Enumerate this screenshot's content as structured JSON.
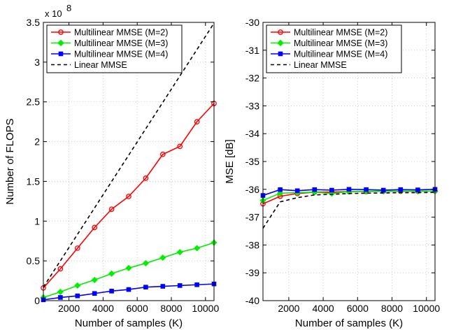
{
  "chart_data": [
    {
      "type": "line",
      "xlabel": "Number of samples (K)",
      "ylabel": "Number of FLOPS",
      "y_exponent_label": "x 10",
      "y_exponent_power": "8",
      "xlim": [
        500,
        10500
      ],
      "ylim": [
        0,
        3.5
      ],
      "xticks": [
        2000,
        4000,
        6000,
        8000,
        10000
      ],
      "yticks": [
        0,
        0.5,
        1,
        1.5,
        2,
        2.5,
        3,
        3.5
      ],
      "grid": true,
      "legend_position": "top-left",
      "series": [
        {
          "name": "Multilinear MMSE (M=2)",
          "color": "#ff0000",
          "marker": "circle",
          "dash": false,
          "x": [
            500,
            1500,
            2500,
            3500,
            4500,
            5500,
            6500,
            7500,
            8500,
            9500,
            10500
          ],
          "y": [
            0.16,
            0.4,
            0.66,
            0.92,
            1.15,
            1.31,
            1.54,
            1.84,
            1.94,
            2.25,
            2.48
          ]
        },
        {
          "name": "Multilinear MMSE (M=3)",
          "color": "#00ee00",
          "marker": "diamond",
          "dash": false,
          "x": [
            500,
            1500,
            2500,
            3500,
            4500,
            5500,
            6500,
            7500,
            8500,
            9500,
            10500
          ],
          "y": [
            0.04,
            0.11,
            0.19,
            0.26,
            0.34,
            0.41,
            0.47,
            0.54,
            0.61,
            0.66,
            0.73
          ]
        },
        {
          "name": "Multilinear MMSE (M=4)",
          "color": "#0000ff",
          "marker": "square",
          "dash": false,
          "x": [
            500,
            1500,
            2500,
            3500,
            4500,
            5500,
            6500,
            7500,
            8500,
            9500,
            10500
          ],
          "y": [
            0.01,
            0.04,
            0.06,
            0.09,
            0.12,
            0.14,
            0.17,
            0.18,
            0.19,
            0.2,
            0.21
          ]
        },
        {
          "name": "Linear MMSE",
          "color": "#000000",
          "marker": "none",
          "dash": true,
          "x": [
            500,
            10500
          ],
          "y": [
            0.17,
            3.49
          ]
        }
      ]
    },
    {
      "type": "line",
      "xlabel": "Number of samples (K)",
      "ylabel": "MSE [dB]",
      "xlim": [
        500,
        10500
      ],
      "ylim": [
        -40,
        -30
      ],
      "xticks": [
        2000,
        4000,
        6000,
        8000,
        10000
      ],
      "yticks": [
        -40,
        -39,
        -38,
        -37,
        -36,
        -35,
        -34,
        -33,
        -32,
        -31,
        -30
      ],
      "grid": true,
      "legend_position": "top-left",
      "series": [
        {
          "name": "Multilinear MMSE (M=2)",
          "color": "#ff0000",
          "marker": "circle",
          "dash": false,
          "x": [
            500,
            1500,
            2500,
            3500,
            4500,
            5500,
            6500,
            7500,
            8500,
            9500,
            10500
          ],
          "y": [
            -36.52,
            -36.25,
            -36.15,
            -36.1,
            -36.1,
            -36.08,
            -36.08,
            -36.07,
            -36.07,
            -36.07,
            -36.06
          ]
        },
        {
          "name": "Multilinear MMSE (M=3)",
          "color": "#00ee00",
          "marker": "diamond",
          "dash": false,
          "x": [
            500,
            1500,
            2500,
            3500,
            4500,
            5500,
            6500,
            7500,
            8500,
            9500,
            10500
          ],
          "y": [
            -36.4,
            -36.14,
            -36.12,
            -36.1,
            -36.15,
            -36.08,
            -36.07,
            -36.07,
            -36.06,
            -36.07,
            -36.06
          ]
        },
        {
          "name": "Multilinear MMSE (M=4)",
          "color": "#0000ff",
          "marker": "square",
          "dash": false,
          "x": [
            500,
            1500,
            2500,
            3500,
            4500,
            5500,
            6500,
            7500,
            8500,
            9500,
            10500
          ],
          "y": [
            -36.22,
            -36.01,
            -36.05,
            -36.01,
            -36.03,
            -36.0,
            -36.01,
            -36.03,
            -36.01,
            -36.02,
            -36.0
          ]
        },
        {
          "name": "Linear MMSE",
          "color": "#000000",
          "marker": "none",
          "dash": true,
          "x": [
            500,
            1500,
            2500,
            3500,
            4500,
            5500,
            6500,
            7500,
            8500,
            9500,
            10500
          ],
          "y": [
            -37.4,
            -36.45,
            -36.3,
            -36.2,
            -36.18,
            -36.15,
            -36.14,
            -36.13,
            -36.12,
            -36.12,
            -36.11
          ]
        }
      ]
    }
  ]
}
